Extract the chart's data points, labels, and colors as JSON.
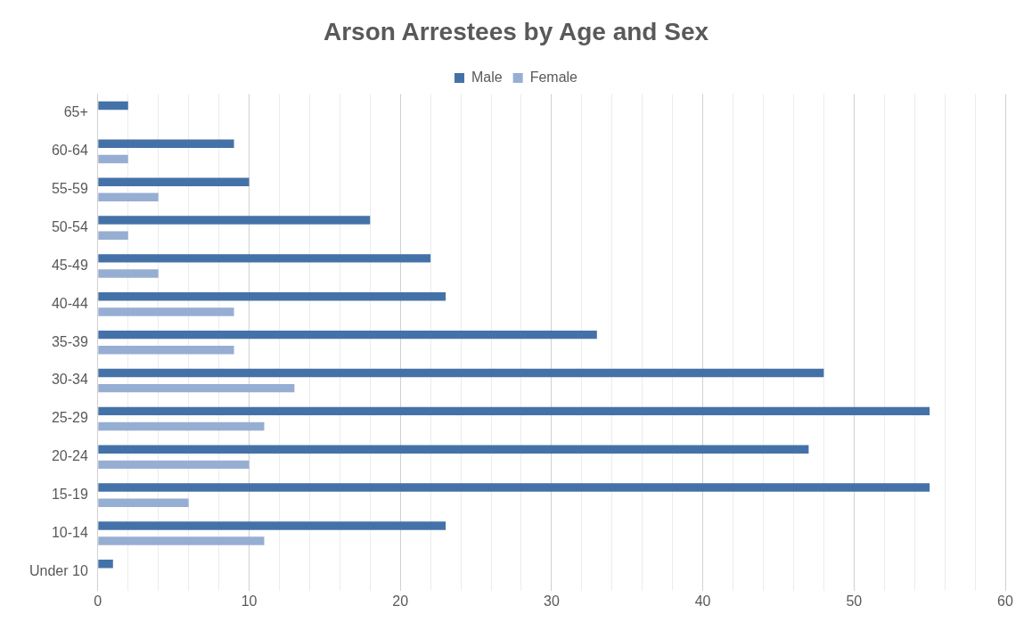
{
  "chart_data": {
    "type": "bar",
    "orientation": "horizontal",
    "title": "Arson Arrestees by Age and Sex",
    "categories": [
      "65+",
      "60-64",
      "55-59",
      "50-54",
      "45-49",
      "40-44",
      "35-39",
      "30-34",
      "25-29",
      "20-24",
      "15-19",
      "10-14",
      "Under 10"
    ],
    "series": [
      {
        "name": "Male",
        "color": "#4472a8",
        "values": [
          2,
          9,
          10,
          18,
          22,
          23,
          33,
          48,
          55,
          47,
          55,
          23,
          1
        ]
      },
      {
        "name": "Female",
        "color": "#97aed3",
        "values": [
          0,
          2,
          4,
          2,
          4,
          9,
          9,
          13,
          11,
          10,
          6,
          11,
          0
        ]
      }
    ],
    "xlim": [
      0,
      60
    ],
    "xticks": [
      0,
      {
        "value": 2,
        "label": null
      },
      {
        "value": 4,
        "label": null
      },
      {
        "value": 6,
        "label": null
      },
      {
        "value": 8,
        "label": null
      },
      10,
      {
        "value": 12,
        "label": null
      },
      {
        "value": 14,
        "label": null
      },
      {
        "value": 16,
        "label": null
      },
      {
        "value": 18,
        "label": null
      },
      20,
      {
        "value": 22,
        "label": null
      },
      {
        "value": 24,
        "label": null
      },
      {
        "value": 26,
        "label": null
      },
      {
        "value": 28,
        "label": null
      },
      30,
      {
        "value": 32,
        "label": null
      },
      {
        "value": 34,
        "label": null
      },
      {
        "value": 36,
        "label": null
      },
      {
        "value": 38,
        "label": null
      },
      40,
      {
        "value": 42,
        "label": null
      },
      {
        "value": 44,
        "label": null
      },
      {
        "value": 46,
        "label": null
      },
      {
        "value": 48,
        "label": null
      },
      50,
      {
        "value": 52,
        "label": null
      },
      {
        "value": 54,
        "label": null
      },
      {
        "value": 56,
        "label": null
      },
      {
        "value": 58,
        "label": null
      },
      60
    ],
    "grid": "x",
    "legend": "top"
  }
}
